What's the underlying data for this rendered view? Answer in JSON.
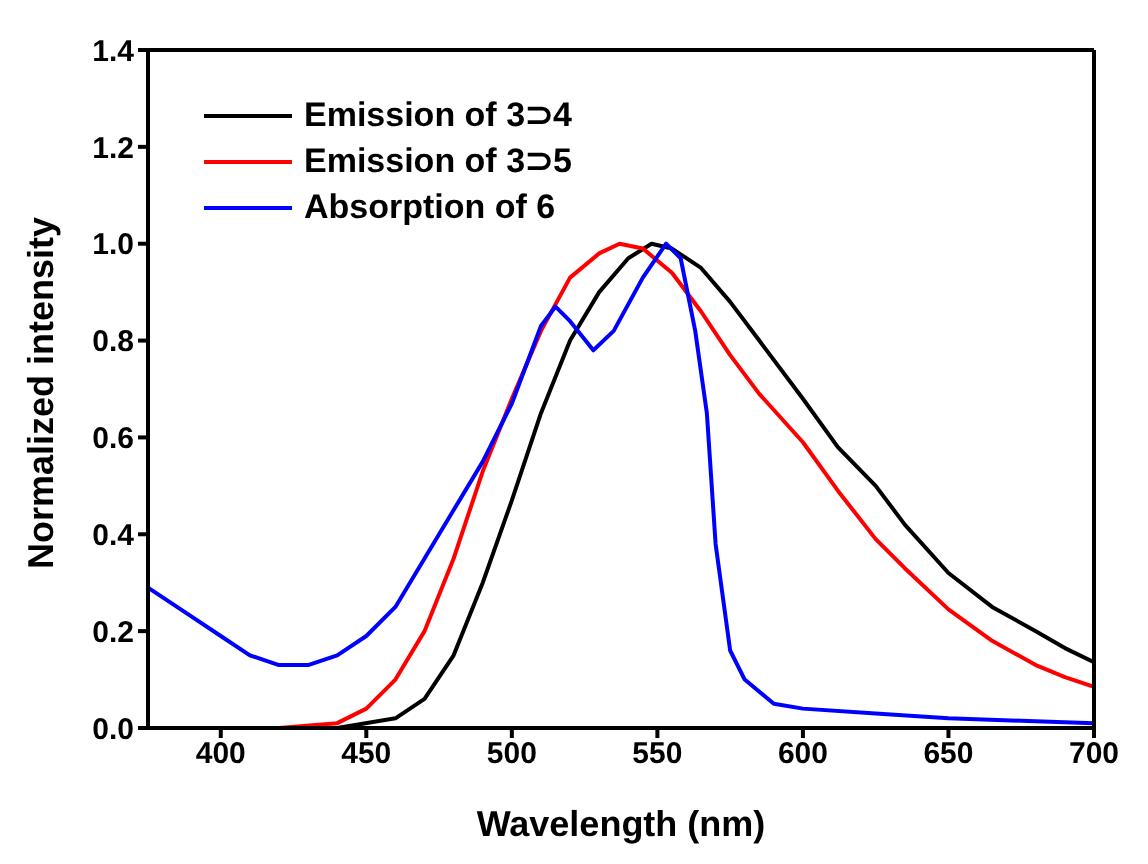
{
  "chart_data": {
    "type": "line",
    "xlabel": "Wavelength (nm)",
    "ylabel": "Normalized intensity",
    "xlim": [
      375,
      700
    ],
    "xticks": [
      400,
      450,
      500,
      550,
      600,
      650,
      700
    ],
    "ylim": [
      0,
      1.4
    ],
    "yticks": [
      {
        "value": 0,
        "label": "0.0"
      },
      0.2,
      0.4,
      0.6,
      0.8,
      {
        "value": 1,
        "label": "1.0"
      },
      1.2,
      1.4
    ],
    "legend": "top left",
    "marker": "none",
    "line_style": "solid",
    "series": [
      {
        "name": "Emission of 3⊃4",
        "color": "#000000",
        "x": [
          375,
          440,
          460,
          470,
          480,
          490,
          500,
          510,
          520,
          530,
          540,
          548,
          555,
          565,
          575,
          585,
          600,
          612,
          625,
          635,
          650,
          665,
          680,
          690,
          700
        ],
        "values": [
          0,
          0,
          0.02,
          0.06,
          0.15,
          0.3,
          0.47,
          0.65,
          0.8,
          0.9,
          0.97,
          1.0,
          0.99,
          0.95,
          0.88,
          0.8,
          0.68,
          0.58,
          0.5,
          0.42,
          0.32,
          0.25,
          0.2,
          0.165,
          0.136
        ]
      },
      {
        "name": "Emission of 3⊃5",
        "color": "#ff0000",
        "x": [
          375,
          420,
          440,
          450,
          460,
          470,
          480,
          490,
          500,
          510,
          520,
          530,
          537,
          545,
          555,
          565,
          575,
          585,
          600,
          612,
          625,
          635,
          650,
          665,
          680,
          690,
          700
        ],
        "values": [
          0,
          0,
          0.01,
          0.04,
          0.1,
          0.2,
          0.35,
          0.53,
          0.68,
          0.82,
          0.93,
          0.98,
          1.0,
          0.99,
          0.94,
          0.86,
          0.77,
          0.69,
          0.59,
          0.49,
          0.39,
          0.33,
          0.245,
          0.18,
          0.13,
          0.105,
          0.085
        ]
      },
      {
        "name": "Absorption of 6",
        "color": "#0000ff",
        "x": [
          375,
          390,
          400,
          410,
          420,
          430,
          440,
          450,
          460,
          470,
          480,
          490,
          500,
          510,
          515,
          520,
          528,
          535,
          545,
          553,
          558,
          563,
          567,
          570,
          575,
          580,
          590,
          600,
          625,
          650,
          675,
          700
        ],
        "values": [
          0.29,
          0.23,
          0.19,
          0.15,
          0.13,
          0.13,
          0.15,
          0.19,
          0.25,
          0.35,
          0.45,
          0.55,
          0.67,
          0.83,
          0.87,
          0.84,
          0.78,
          0.82,
          0.93,
          1.0,
          0.97,
          0.82,
          0.65,
          0.38,
          0.16,
          0.1,
          0.05,
          0.04,
          0.03,
          0.02,
          0.015,
          0.01
        ]
      }
    ]
  }
}
